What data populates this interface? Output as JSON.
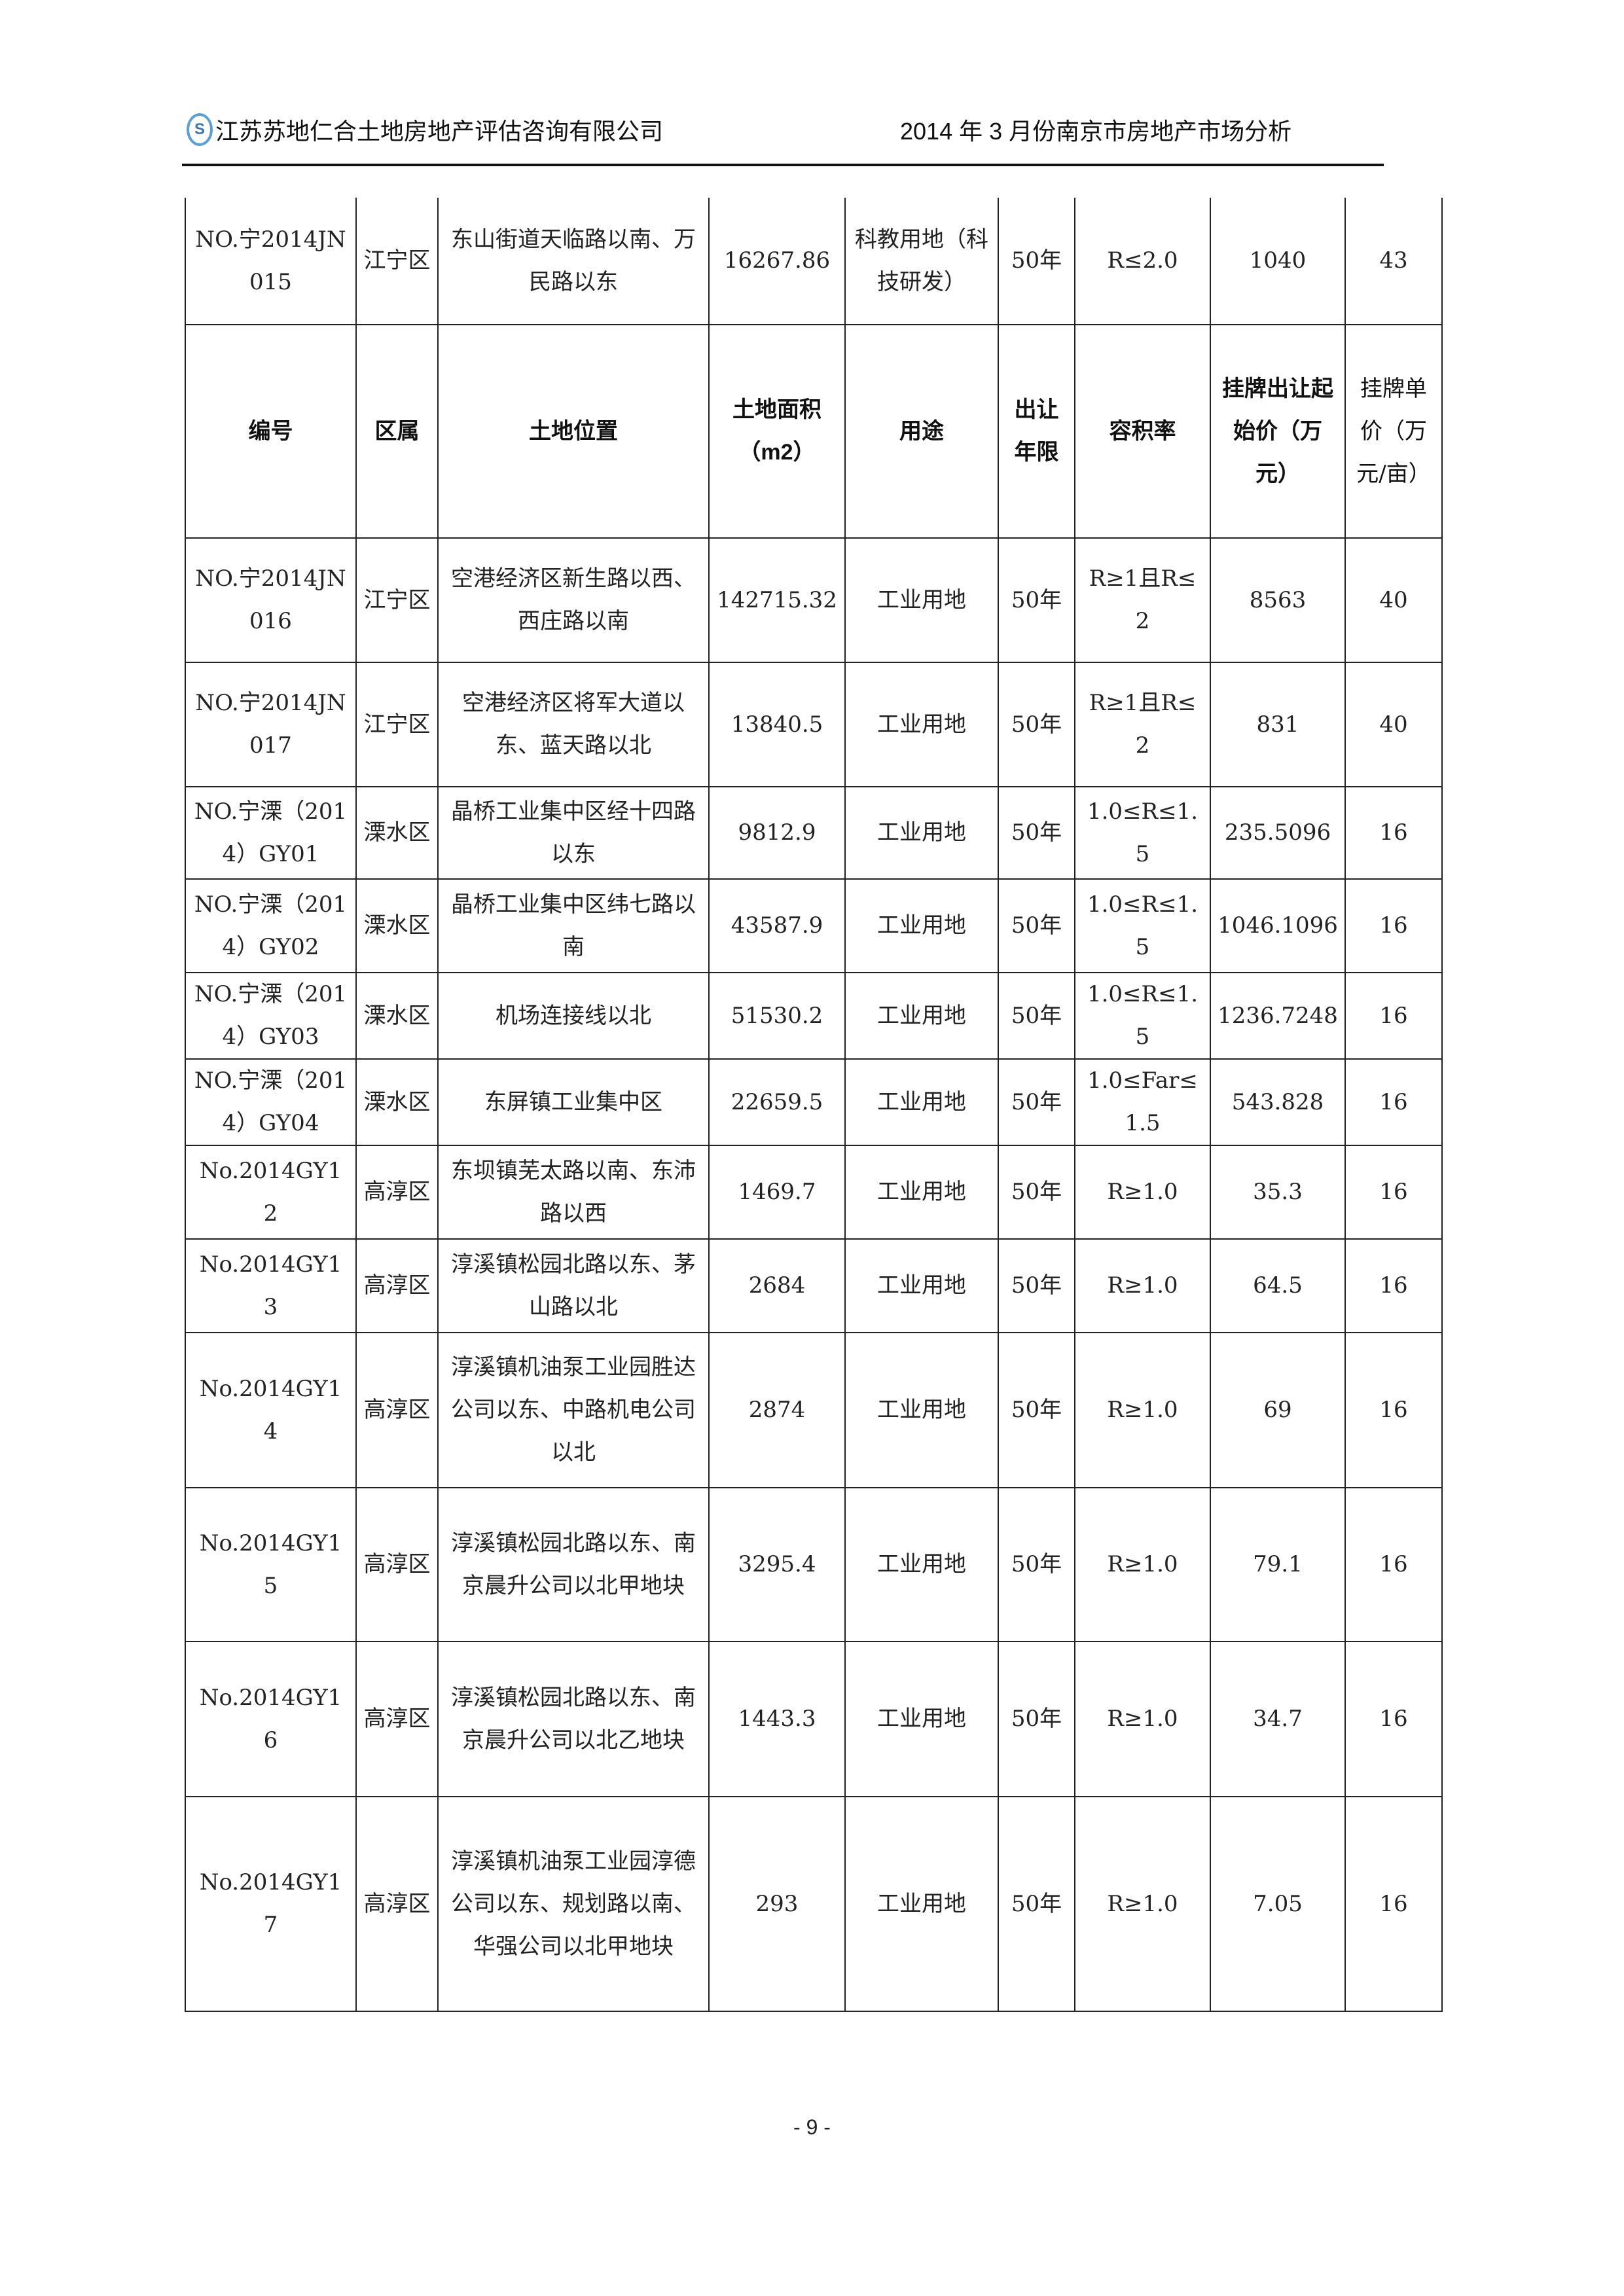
{
  "header": {
    "logo_text": "SD",
    "company": "江苏苏地仁合土地房地产评估咨询有限公司",
    "report_title": "2014 年 3 月份南京市房地产市场分析"
  },
  "table": {
    "columns": [
      "编号",
      "区属",
      "土地位置",
      "土地面积（m2）",
      "用途",
      "出让年限",
      "容积率",
      "挂牌出让起始价（万元）",
      "挂牌单价（万元/亩）"
    ],
    "continued_row": [
      "NO.宁2014JN015",
      "江宁区",
      "东山街道天临路以南、万民路以东",
      "16267.86",
      "科教用地（科技研发）",
      "50年",
      "R≤2.0",
      "1040",
      "43"
    ],
    "rows": [
      [
        "NO.宁2014JN016",
        "江宁区",
        "空港经济区新生路以西、西庄路以南",
        "142715.32",
        "工业用地",
        "50年",
        "R≥1且R≤2",
        "8563",
        "40"
      ],
      [
        "NO.宁2014JN017",
        "江宁区",
        "空港经济区将军大道以东、蓝天路以北",
        "13840.5",
        "工业用地",
        "50年",
        "R≥1且R≤2",
        "831",
        "40"
      ],
      [
        "NO.宁溧（2014）GY01",
        "溧水区",
        "晶桥工业集中区经十四路以东",
        "9812.9",
        "工业用地",
        "50年",
        "1.0≤R≤1.5",
        "235.5096",
        "16"
      ],
      [
        "NO.宁溧（2014）GY02",
        "溧水区",
        "晶桥工业集中区纬七路以南",
        "43587.9",
        "工业用地",
        "50年",
        "1.0≤R≤1.5",
        "1046.1096",
        "16"
      ],
      [
        "NO.宁溧（2014）GY03",
        "溧水区",
        "机场连接线以北",
        "51530.2",
        "工业用地",
        "50年",
        "1.0≤R≤1.5",
        "1236.7248",
        "16"
      ],
      [
        "NO.宁溧（2014）GY04",
        "溧水区",
        "东屏镇工业集中区",
        "22659.5",
        "工业用地",
        "50年",
        "1.0≤Far≤1.5",
        "543.828",
        "16"
      ],
      [
        "No.2014GY12",
        "高淳区",
        "东坝镇芜太路以南、东沛路以西",
        "1469.7",
        "工业用地",
        "50年",
        "R≥1.0",
        "35.3",
        "16"
      ],
      [
        "No.2014GY13",
        "高淳区",
        "淳溪镇松园北路以东、茅山路以北",
        "2684",
        "工业用地",
        "50年",
        "R≥1.0",
        "64.5",
        "16"
      ],
      [
        "No.2014GY14",
        "高淳区",
        "淳溪镇机油泵工业园胜达公司以东、中路机电公司以北",
        "2874",
        "工业用地",
        "50年",
        "R≥1.0",
        "69",
        "16"
      ],
      [
        "No.2014GY15",
        "高淳区",
        "淳溪镇松园北路以东、南京晨升公司以北甲地块",
        "3295.4",
        "工业用地",
        "50年",
        "R≥1.0",
        "79.1",
        "16"
      ],
      [
        "No.2014GY16",
        "高淳区",
        "淳溪镇松园北路以东、南京晨升公司以北乙地块",
        "1443.3",
        "工业用地",
        "50年",
        "R≥1.0",
        "34.7",
        "16"
      ],
      [
        "No.2014GY17",
        "高淳区",
        "淳溪镇机油泵工业园淳德公司以东、规划路以南、华强公司以北甲地块",
        "293",
        "工业用地",
        "50年",
        "R≥1.0",
        "7.05",
        "16"
      ]
    ]
  },
  "footer": {
    "page_number": "- 9 -"
  }
}
